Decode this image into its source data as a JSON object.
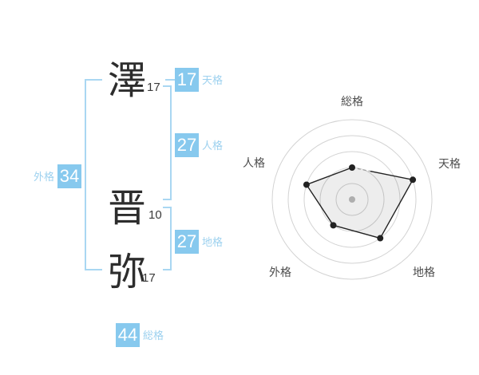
{
  "page": {
    "description_label": "name stroke-count analysis diagram with radar chart"
  },
  "name": {
    "characters": [
      {
        "char": "澤",
        "strokes": "17"
      },
      {
        "char": "晋",
        "strokes": "10"
      },
      {
        "char": "弥",
        "strokes": "17"
      }
    ],
    "categories": [
      {
        "key": "tenkaku",
        "label": "天格",
        "value": "17"
      },
      {
        "key": "jinkaku",
        "label": "人格",
        "value": "27"
      },
      {
        "key": "chikaku",
        "label": "地格",
        "value": "27"
      },
      {
        "key": "gaikaku",
        "label": "外格",
        "value": "34"
      },
      {
        "key": "soukaku",
        "label": "総格",
        "value": "44"
      }
    ]
  },
  "colors": {
    "accent_blue": "#87C9EE",
    "accent_blue_light": "#9DD1EF",
    "bracket_blue": "#A9D7F2",
    "kanji_color": "#2D2D2D",
    "stroke_count_color": "#3A3A3A",
    "chart_grid": "#D3D3D3",
    "chart_label": "#4D4D4D",
    "chart_line": "#222222",
    "chart_point": "#222222",
    "chart_center_dot": "#BCBCBC",
    "chart_dashed": "#999999"
  },
  "chart_data": {
    "type": "radar",
    "axes": [
      {
        "label": "総格",
        "value": 2
      },
      {
        "label": "天格",
        "value": 4
      },
      {
        "label": "地格",
        "value": 3
      },
      {
        "label": "外格",
        "value": 2
      },
      {
        "label": "人格",
        "value": 3
      }
    ],
    "scale_max": 5,
    "rings": 5,
    "grid": "5 concentric circles, no radial spokes",
    "legend": "none",
    "style_notes": "gray translucent filled polygon with black outline and black vertex dots; gray center dot; short gray dashed segment at start of edge from 総格 toward 天格; axes ordered clockwise from top"
  }
}
